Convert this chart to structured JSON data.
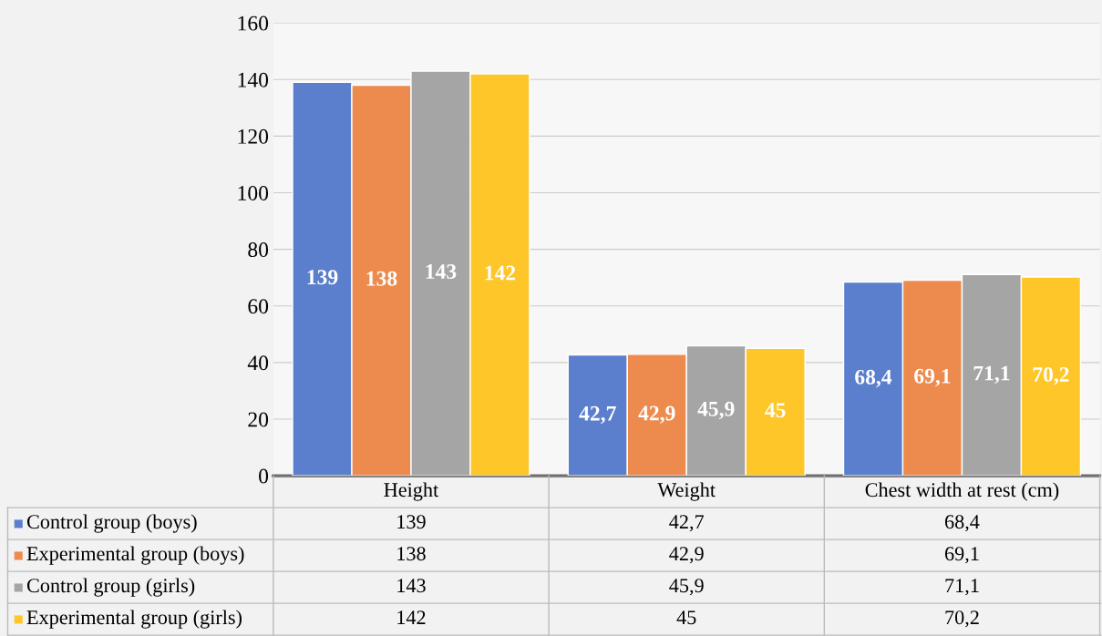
{
  "chart_data": {
    "type": "bar",
    "categories": [
      "Height",
      "Weight",
      "Chest width at rest (cm)"
    ],
    "series": [
      {
        "name": "Control group (boys)",
        "color": "#5b7fcc",
        "values": [
          139,
          42.7,
          68.4
        ],
        "value_labels": [
          "139",
          "42,7",
          "68,4"
        ]
      },
      {
        "name": "Experimental group (boys)",
        "color": "#ed8b4e",
        "values": [
          138,
          42.9,
          69.1
        ],
        "value_labels": [
          "138",
          "42,9",
          "69,1"
        ]
      },
      {
        "name": "Control group (girls)",
        "color": "#a5a5a5",
        "values": [
          143,
          45.9,
          71.1
        ],
        "value_labels": [
          "143",
          "45,9",
          "71,1"
        ]
      },
      {
        "name": "Experimental group (girls)",
        "color": "#ffc629",
        "values": [
          142,
          45,
          70.2
        ],
        "value_labels": [
          "142",
          "45",
          "70,2"
        ]
      }
    ],
    "ylim": [
      0,
      160
    ],
    "yticks": [
      0,
      20,
      40,
      60,
      80,
      100,
      120,
      140,
      160
    ],
    "grid": "y",
    "legend": "bottom"
  }
}
